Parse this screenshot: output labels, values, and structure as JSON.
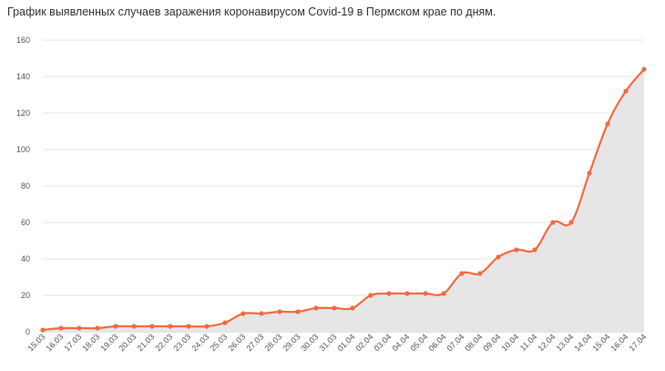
{
  "chart_data": {
    "type": "area",
    "title": "График выявленных случаев заражения коронавирусом Covid-19 в Пермском крае по дням.",
    "xlabel": "",
    "ylabel": "",
    "ylim": [
      0,
      160
    ],
    "yticks": [
      "0",
      "20",
      "40",
      "60",
      "80",
      "100",
      "120",
      "140",
      "160"
    ],
    "grid": true,
    "legend": "none",
    "colors": {
      "line": "#f26b43",
      "area": "#e6e6e6",
      "grid": "#e6e6e6"
    },
    "categories": [
      "15.03",
      "16.03",
      "17.03",
      "18.03",
      "19.03",
      "20.03",
      "21.03",
      "22.03",
      "23.03",
      "24.03",
      "25.03",
      "26.03",
      "27.03",
      "28.03",
      "29.03",
      "30.03",
      "31.03",
      "01.04",
      "02.04",
      "03.04",
      "04.04",
      "05.04",
      "06.04",
      "07.04",
      "08.04",
      "09.04",
      "10.04",
      "11.04",
      "12.04",
      "13.04",
      "14.04",
      "15.04",
      "16.04",
      "17.04"
    ],
    "series": [
      {
        "values": [
          1,
          2,
          2,
          2,
          3,
          3,
          3,
          3,
          3,
          3,
          5,
          10,
          10,
          11,
          11,
          13,
          13,
          13,
          20,
          21,
          21,
          21,
          21,
          32,
          32,
          41,
          45,
          45,
          60,
          60,
          87,
          114,
          132,
          144
        ]
      }
    ]
  }
}
